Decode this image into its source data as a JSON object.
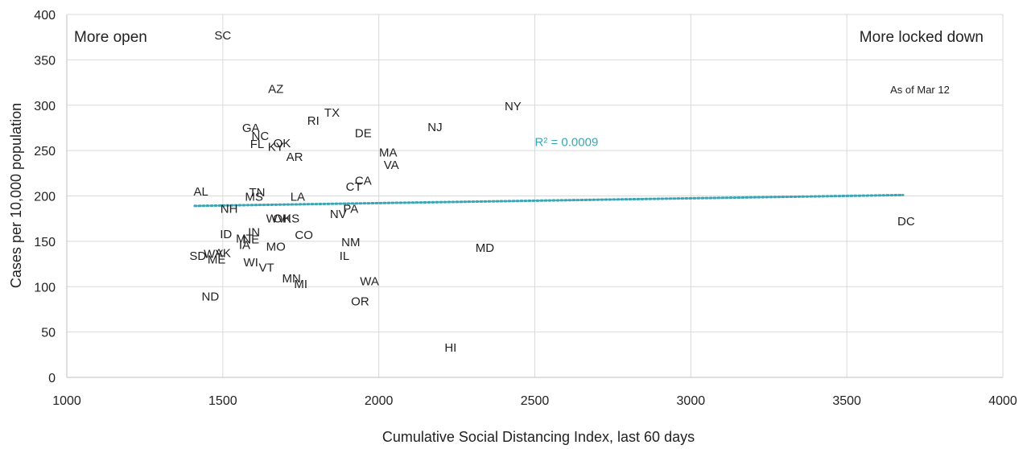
{
  "chart_data": {
    "type": "scatter",
    "xlabel": "Cumulative Social Distancing Index, last 60 days",
    "ylabel": "Cases per 10,000 population",
    "xlim": [
      1000,
      4000
    ],
    "ylim": [
      0,
      400
    ],
    "x_ticks": [
      1000,
      1500,
      2000,
      2500,
      3000,
      3500,
      4000
    ],
    "y_ticks": [
      0,
      50,
      100,
      150,
      200,
      250,
      300,
      350,
      400
    ],
    "grid": true,
    "annotations": {
      "left_corner": "More open",
      "right_corner": "More locked down",
      "date_note": "As of Mar 12"
    },
    "trendline": {
      "label": "R² = 0.0009",
      "x_start": 1410,
      "y_start": 189,
      "x_end": 3680,
      "y_end": 201,
      "color": "#3aa6b5"
    },
    "points": [
      {
        "label": "SC",
        "x": 1500,
        "y": 377
      },
      {
        "label": "AZ",
        "x": 1670,
        "y": 318
      },
      {
        "label": "TX",
        "x": 1850,
        "y": 292
      },
      {
        "label": "RI",
        "x": 1790,
        "y": 283
      },
      {
        "label": "NY",
        "x": 2430,
        "y": 299
      },
      {
        "label": "NJ",
        "x": 2180,
        "y": 276
      },
      {
        "label": "GA",
        "x": 1590,
        "y": 275
      },
      {
        "label": "NC",
        "x": 1620,
        "y": 266
      },
      {
        "label": "DE",
        "x": 1950,
        "y": 269
      },
      {
        "label": "FL",
        "x": 1610,
        "y": 257
      },
      {
        "label": "KY",
        "x": 1670,
        "y": 254
      },
      {
        "label": "OK",
        "x": 1690,
        "y": 258
      },
      {
        "label": "MA",
        "x": 2030,
        "y": 248
      },
      {
        "label": "AR",
        "x": 1730,
        "y": 243
      },
      {
        "label": "VA",
        "x": 2040,
        "y": 234
      },
      {
        "label": "CA",
        "x": 1950,
        "y": 217
      },
      {
        "label": "CT",
        "x": 1920,
        "y": 210
      },
      {
        "label": "AL",
        "x": 1430,
        "y": 205
      },
      {
        "label": "TN",
        "x": 1610,
        "y": 204
      },
      {
        "label": "MS",
        "x": 1600,
        "y": 199
      },
      {
        "label": "LA",
        "x": 1740,
        "y": 199
      },
      {
        "label": "NH",
        "x": 1520,
        "y": 186
      },
      {
        "label": "PA",
        "x": 1910,
        "y": 186
      },
      {
        "label": "NV",
        "x": 1870,
        "y": 180
      },
      {
        "label": "WV",
        "x": 1670,
        "y": 175
      },
      {
        "label": "OH",
        "x": 1690,
        "y": 175
      },
      {
        "label": "KS",
        "x": 1720,
        "y": 175
      },
      {
        "label": "DC",
        "x": 3690,
        "y": 172
      },
      {
        "label": "ID",
        "x": 1510,
        "y": 158
      },
      {
        "label": "IN",
        "x": 1600,
        "y": 160
      },
      {
        "label": "CO",
        "x": 1760,
        "y": 157
      },
      {
        "label": "MT",
        "x": 1570,
        "y": 153
      },
      {
        "label": "NE",
        "x": 1590,
        "y": 152
      },
      {
        "label": "NM",
        "x": 1910,
        "y": 149
      },
      {
        "label": "IA",
        "x": 1570,
        "y": 146
      },
      {
        "label": "MO",
        "x": 1670,
        "y": 144
      },
      {
        "label": "MD",
        "x": 2340,
        "y": 143
      },
      {
        "label": "WY",
        "x": 1470,
        "y": 136
      },
      {
        "label": "AK",
        "x": 1500,
        "y": 137
      },
      {
        "label": "SD",
        "x": 1420,
        "y": 134
      },
      {
        "label": "IL",
        "x": 1890,
        "y": 134
      },
      {
        "label": "ME",
        "x": 1480,
        "y": 130
      },
      {
        "label": "WI",
        "x": 1590,
        "y": 127
      },
      {
        "label": "VT",
        "x": 1640,
        "y": 121
      },
      {
        "label": "MN",
        "x": 1720,
        "y": 109
      },
      {
        "label": "WA",
        "x": 1970,
        "y": 106
      },
      {
        "label": "MI",
        "x": 1750,
        "y": 103
      },
      {
        "label": "ND",
        "x": 1460,
        "y": 89
      },
      {
        "label": "OR",
        "x": 1940,
        "y": 84
      },
      {
        "label": "HI",
        "x": 2230,
        "y": 33
      }
    ]
  }
}
